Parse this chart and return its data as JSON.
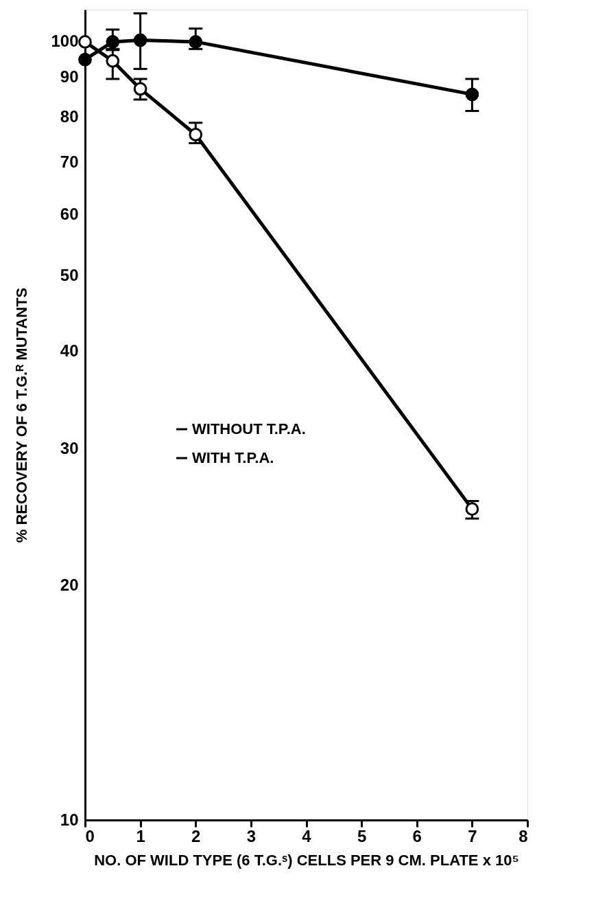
{
  "chart_data": {
    "type": "line",
    "xlabel": "NO. OF WILD TYPE (6 T.G.ˢ) CELLS PER 9 CM. PLATE x 10⁵",
    "ylabel": "% RECOVERY OF 6 T.G.ᴿ MUTANTS",
    "log": "y",
    "xlim": [
      0,
      8
    ],
    "xticks": [
      0,
      1,
      2,
      3,
      4,
      5,
      6,
      7,
      8
    ],
    "ylim": [
      10,
      110
    ],
    "yticks": [
      10,
      20,
      30,
      40,
      50,
      60,
      70,
      80,
      90,
      100
    ],
    "grid": false,
    "legend": "left",
    "marker": "circle",
    "line_style": "solid",
    "series": [
      {
        "name": "WITHOUT T.P.A.",
        "color": "#000000",
        "x": [
          0,
          0.5,
          1,
          2,
          7
        ],
        "values": [
          100,
          94.5,
          87,
          76,
          25.1
        ],
        "errors": [
          null,
          [
            89.6,
            97.9
          ],
          [
            84.3,
            89.6
          ],
          [
            74.1,
            78.7
          ],
          [
            24.4,
            25.7
          ]
        ]
      },
      {
        "name": "WITH T.P.A.",
        "color": "#000000",
        "x": [
          0,
          0.5,
          1,
          2,
          7
        ],
        "values": [
          94.9,
          100,
          100.5,
          100,
          85.6
        ],
        "errors": [
          null,
          [
            97.6,
            103.7
          ],
          [
            92.3,
            108.8
          ],
          [
            97.9,
            104
          ],
          [
            81.5,
            89.6
          ]
        ]
      }
    ]
  }
}
